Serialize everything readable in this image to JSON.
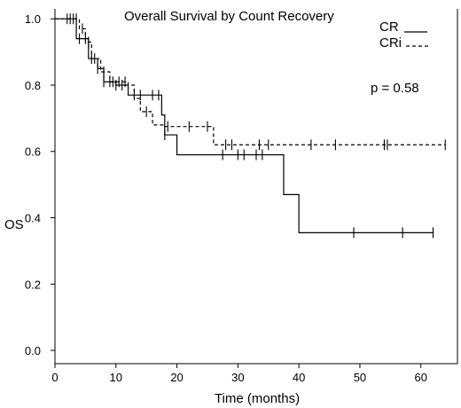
{
  "chart_data": {
    "type": "line",
    "title": "Overall Survival by Count Recovery",
    "xlabel": "Time (months)",
    "ylabel": "OS",
    "xlim": [
      0,
      66
    ],
    "ylim": [
      -0.04,
      1.03
    ],
    "x_ticks": [
      0,
      10,
      20,
      30,
      40,
      50,
      60
    ],
    "y_ticks": [
      0.0,
      0.2,
      0.4,
      0.6,
      0.8,
      1.0
    ],
    "y_tick_labels": [
      "0.0",
      "0.2",
      "0.4",
      "0.6",
      "0.8",
      "1.0"
    ],
    "grid": false,
    "legend_position": "top-right",
    "annotation": "p = 0.58",
    "series": [
      {
        "name": "CR",
        "line_style": "solid",
        "steps": [
          [
            0,
            1.0
          ],
          [
            3.5,
            0.94
          ],
          [
            5.5,
            0.88
          ],
          [
            7,
            0.85
          ],
          [
            8,
            0.81
          ],
          [
            10,
            0.8
          ],
          [
            12,
            0.77
          ],
          [
            17.5,
            0.71
          ],
          [
            18,
            0.65
          ],
          [
            20,
            0.59
          ],
          [
            37.5,
            0.47
          ],
          [
            40,
            0.355
          ],
          [
            62,
            0.355
          ]
        ],
        "censor_times": [
          2,
          3,
          4,
          5,
          6,
          7,
          8,
          9,
          10,
          11,
          13,
          14,
          16,
          17,
          18,
          27.5,
          30,
          31,
          33,
          34,
          49,
          57,
          62
        ]
      },
      {
        "name": "CRi",
        "line_style": "dashed",
        "steps": [
          [
            0,
            1.0
          ],
          [
            4,
            0.97
          ],
          [
            5,
            0.93
          ],
          [
            6,
            0.88
          ],
          [
            7.5,
            0.84
          ],
          [
            9,
            0.81
          ],
          [
            12,
            0.8
          ],
          [
            13,
            0.76
          ],
          [
            14,
            0.72
          ],
          [
            16,
            0.68
          ],
          [
            18,
            0.675
          ],
          [
            26,
            0.62
          ],
          [
            64,
            0.62
          ]
        ],
        "censor_times": [
          2.5,
          3.5,
          4.5,
          5.5,
          6.5,
          8,
          9.5,
          10.5,
          11.5,
          15,
          18.5,
          22,
          25,
          28,
          29,
          33.5,
          35,
          42,
          46,
          54,
          54.5,
          64
        ]
      }
    ]
  }
}
